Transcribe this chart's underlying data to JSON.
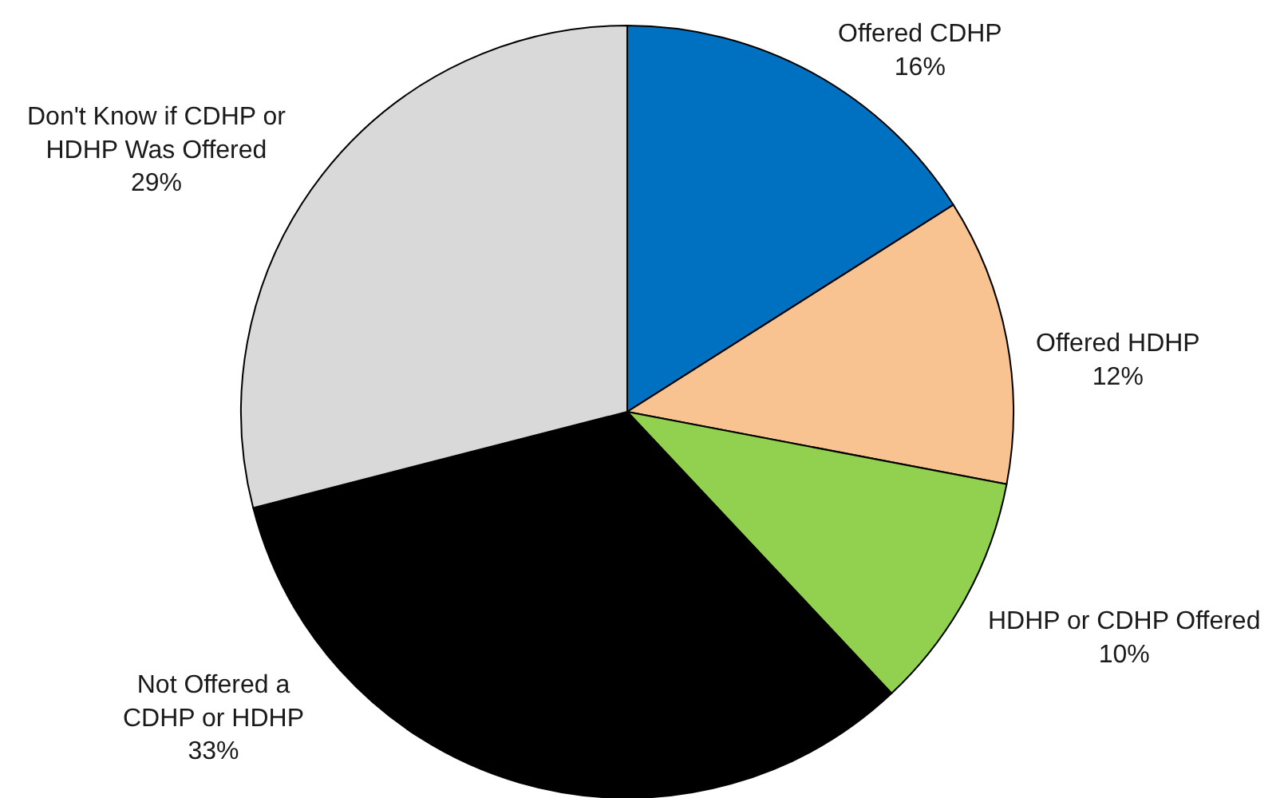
{
  "chart_data": {
    "type": "pie",
    "categories": [
      "Offered CDHP",
      "Offered HDHP",
      "HDHP or CDHP Offered",
      "Not Offered a CDHP or HDHP",
      "Don't Know if CDHP or HDHP Was Offered"
    ],
    "values": [
      16,
      12,
      10,
      33,
      29
    ],
    "value_labels": [
      "16%",
      "12%",
      "10%",
      "33%",
      "29%"
    ],
    "colors": [
      "#0070c0",
      "#f8c291",
      "#92d050",
      "#000000",
      "#d9d9d9"
    ]
  }
}
